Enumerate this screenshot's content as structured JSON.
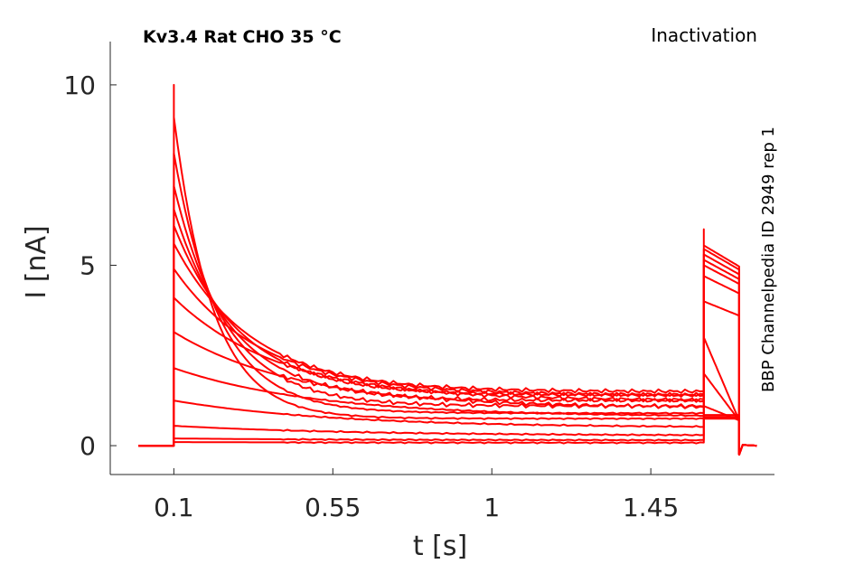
{
  "chart_data": {
    "type": "line",
    "title": "Kv3.4  Rat  CHO  35 °C",
    "protocol_label": "Inactivation",
    "side_label": "BBP Channelpedia ID 2949 rep 1",
    "xlabel": "t [s]",
    "ylabel": "I [nA]",
    "xlim": [
      -0.08,
      1.8
    ],
    "ylim": [
      -0.8,
      11.2
    ],
    "xticks": [
      0.1,
      0.55,
      1,
      1.45
    ],
    "xtick_labels": [
      "0.1",
      "0.55",
      "1",
      "1.45"
    ],
    "yticks": [
      0,
      5,
      10
    ],
    "ytick_labels": [
      "0",
      "5",
      "10"
    ],
    "grid": false,
    "legend": "none",
    "series_color": "#ff0000",
    "stimulus": {
      "pulse_start": 0.1,
      "pulse_end": 1.6,
      "test_end": 1.7,
      "record_start": 0.0,
      "record_end": 1.75,
      "peak_transient": 10.0,
      "test_peak_transient": 6.0
    },
    "series": [
      {
        "peak": 0.1,
        "steady": 0.08,
        "tau": 0.5,
        "test": 0.75
      },
      {
        "peak": 0.2,
        "steady": 0.15,
        "tau": 0.5,
        "test": 0.75
      },
      {
        "peak": 0.55,
        "steady": 0.28,
        "tau": 0.5,
        "test": 0.8
      },
      {
        "peak": 1.25,
        "steady": 0.5,
        "tau": 0.45,
        "test": 0.85
      },
      {
        "peak": 2.15,
        "steady": 0.8,
        "tau": 0.4,
        "test": 1.1
      },
      {
        "peak": 3.15,
        "steady": 1.05,
        "tau": 0.35,
        "test": 2.0
      },
      {
        "peak": 4.1,
        "steady": 1.25,
        "tau": 0.3,
        "test": 3.0
      },
      {
        "peak": 4.9,
        "steady": 1.4,
        "tau": 0.25,
        "test": 4.0
      },
      {
        "peak": 5.6,
        "steady": 1.5,
        "tau": 0.22,
        "test": 4.7
      },
      {
        "peak": 6.1,
        "steady": 1.4,
        "tau": 0.19,
        "test": 5.0
      },
      {
        "peak": 6.55,
        "steady": 1.25,
        "tau": 0.17,
        "test": 5.15
      },
      {
        "peak": 7.2,
        "steady": 1.1,
        "tau": 0.15,
        "test": 5.3
      },
      {
        "peak": 8.1,
        "steady": 0.9,
        "tau": 0.13,
        "test": 5.45
      },
      {
        "peak": 9.1,
        "steady": 0.75,
        "tau": 0.11,
        "test": 5.55
      }
    ]
  }
}
